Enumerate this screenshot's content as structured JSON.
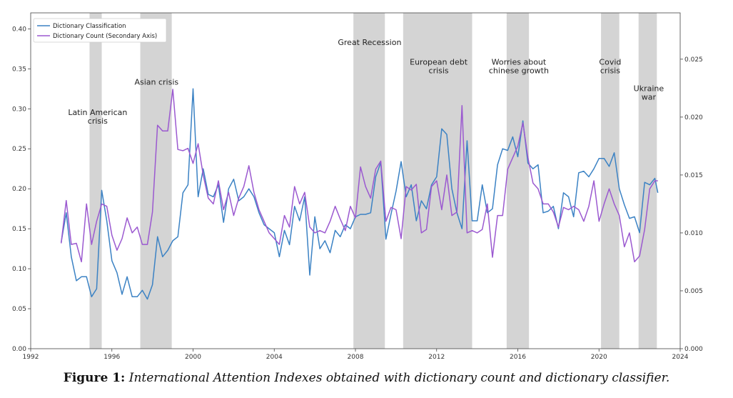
{
  "chart_data": {
    "type": "line",
    "xlim": [
      1992,
      2024
    ],
    "ylim_left": [
      0.0,
      0.42
    ],
    "ylim_right": [
      0.0,
      0.029
    ],
    "x_ticks": [
      "1992",
      "1996",
      "2000",
      "2004",
      "2008",
      "2012",
      "2016",
      "2020",
      "2024"
    ],
    "y_ticks_left": [
      "0.00",
      "0.05",
      "0.10",
      "0.15",
      "0.20",
      "0.25",
      "0.30",
      "0.35",
      "0.40"
    ],
    "y_ticks_right": [
      "0.000",
      "0.005",
      "0.010",
      "0.015",
      "0.020",
      "0.025"
    ],
    "legend_position": "top-left",
    "grid": false,
    "colors": {
      "classification": "#3b82c4",
      "count": "#9b59d0",
      "shade": "#d4d4d4"
    },
    "shaded_periods": [
      {
        "start": 1994.9,
        "end": 1995.5
      },
      {
        "start": 1997.4,
        "end": 1998.95
      },
      {
        "start": 2007.9,
        "end": 2009.45
      },
      {
        "start": 2010.35,
        "end": 2013.75
      },
      {
        "start": 2015.45,
        "end": 2016.55
      },
      {
        "start": 2020.1,
        "end": 2021.0
      },
      {
        "start": 2021.95,
        "end": 2022.85
      }
    ],
    "annotations": [
      {
        "lines": [
          "Latin American",
          "crisis"
        ],
        "x": 1995.3,
        "y": 0.292
      },
      {
        "lines": [
          "Asian crisis"
        ],
        "x": 1998.2,
        "y": 0.33
      },
      {
        "lines": [
          "Great Recession"
        ],
        "x": 2008.7,
        "y": 0.38
      },
      {
        "lines": [
          "European debt",
          "crisis"
        ],
        "x": 2012.1,
        "y": 0.355
      },
      {
        "lines": [
          "Worries about",
          "chinese growth"
        ],
        "x": 2016.05,
        "y": 0.355
      },
      {
        "lines": [
          "Covid",
          "crisis"
        ],
        "x": 2020.55,
        "y": 0.355
      },
      {
        "lines": [
          "Ukraine",
          "war"
        ],
        "x": 2022.45,
        "y": 0.322
      }
    ],
    "series": [
      {
        "name": "Dictionary Classification",
        "axis": "left",
        "x": [
          1993.5,
          1993.75,
          1994.0,
          1994.25,
          1994.5,
          1994.75,
          1995.0,
          1995.25,
          1995.5,
          1995.75,
          1996.0,
          1996.25,
          1996.5,
          1996.75,
          1997.0,
          1997.25,
          1997.5,
          1997.75,
          1998.0,
          1998.25,
          1998.5,
          1998.75,
          1999.0,
          1999.25,
          1999.5,
          1999.75,
          2000.0,
          2000.25,
          2000.5,
          2000.75,
          2001.0,
          2001.25,
          2001.5,
          2001.75,
          2002.0,
          2002.25,
          2002.5,
          2002.75,
          2003.0,
          2003.25,
          2003.5,
          2003.75,
          2004.0,
          2004.25,
          2004.5,
          2004.75,
          2005.0,
          2005.25,
          2005.5,
          2005.75,
          2006.0,
          2006.25,
          2006.5,
          2006.75,
          2007.0,
          2007.25,
          2007.5,
          2007.75,
          2008.0,
          2008.25,
          2008.5,
          2008.75,
          2009.0,
          2009.25,
          2009.5,
          2009.75,
          2010.0,
          2010.25,
          2010.5,
          2010.75,
          2011.0,
          2011.25,
          2011.5,
          2011.75,
          2012.0,
          2012.25,
          2012.5,
          2012.75,
          2013.0,
          2013.25,
          2013.5,
          2013.75,
          2014.0,
          2014.25,
          2014.5,
          2014.75,
          2015.0,
          2015.25,
          2015.5,
          2015.75,
          2016.0,
          2016.25,
          2016.5,
          2016.75,
          2017.0,
          2017.25,
          2017.5,
          2017.75,
          2018.0,
          2018.25,
          2018.5,
          2018.75,
          2019.0,
          2019.25,
          2019.5,
          2019.75,
          2020.0,
          2020.25,
          2020.5,
          2020.75,
          2021.0,
          2021.25,
          2021.5,
          2021.75,
          2022.0,
          2022.25,
          2022.5,
          2022.75,
          2022.9
        ],
        "y": [
          0.133,
          0.17,
          0.115,
          0.085,
          0.09,
          0.09,
          0.065,
          0.075,
          0.198,
          0.16,
          0.11,
          0.095,
          0.068,
          0.09,
          0.065,
          0.065,
          0.073,
          0.062,
          0.08,
          0.14,
          0.115,
          0.123,
          0.135,
          0.14,
          0.195,
          0.205,
          0.325,
          0.19,
          0.225,
          0.193,
          0.19,
          0.205,
          0.158,
          0.2,
          0.212,
          0.185,
          0.19,
          0.2,
          0.19,
          0.17,
          0.155,
          0.15,
          0.145,
          0.115,
          0.148,
          0.13,
          0.178,
          0.16,
          0.19,
          0.092,
          0.165,
          0.125,
          0.135,
          0.12,
          0.148,
          0.14,
          0.155,
          0.15,
          0.165,
          0.168,
          0.168,
          0.17,
          0.215,
          0.233,
          0.137,
          0.168,
          0.197,
          0.234,
          0.19,
          0.205,
          0.16,
          0.185,
          0.175,
          0.205,
          0.215,
          0.275,
          0.268,
          0.2,
          0.17,
          0.15,
          0.26,
          0.16,
          0.16,
          0.205,
          0.17,
          0.175,
          0.23,
          0.25,
          0.248,
          0.265,
          0.24,
          0.285,
          0.232,
          0.225,
          0.23,
          0.17,
          0.172,
          0.178,
          0.15,
          0.195,
          0.19,
          0.165,
          0.22,
          0.222,
          0.215,
          0.225,
          0.238,
          0.238,
          0.228,
          0.245,
          0.2,
          0.18,
          0.163,
          0.165,
          0.145,
          0.208,
          0.205,
          0.213,
          0.195
        ]
      },
      {
        "name": "Dictionary Count (Secondary Axis)",
        "axis": "right",
        "x": [
          1993.5,
          1993.75,
          1994.0,
          1994.25,
          1994.5,
          1994.75,
          1995.0,
          1995.25,
          1995.5,
          1995.75,
          1996.0,
          1996.25,
          1996.5,
          1996.75,
          1997.0,
          1997.25,
          1997.5,
          1997.75,
          1998.0,
          1998.25,
          1998.5,
          1998.75,
          1999.0,
          1999.25,
          1999.5,
          1999.75,
          2000.0,
          2000.25,
          2000.5,
          2000.75,
          2001.0,
          2001.25,
          2001.5,
          2001.75,
          2002.0,
          2002.25,
          2002.5,
          2002.75,
          2003.0,
          2003.25,
          2003.5,
          2003.75,
          2004.0,
          2004.25,
          2004.5,
          2004.75,
          2005.0,
          2005.25,
          2005.5,
          2005.75,
          2006.0,
          2006.25,
          2006.5,
          2006.75,
          2007.0,
          2007.25,
          2007.5,
          2007.75,
          2008.0,
          2008.25,
          2008.5,
          2008.75,
          2009.0,
          2009.25,
          2009.5,
          2009.75,
          2010.0,
          2010.25,
          2010.5,
          2010.75,
          2011.0,
          2011.25,
          2011.5,
          2011.75,
          2012.0,
          2012.25,
          2012.5,
          2012.75,
          2013.0,
          2013.25,
          2013.5,
          2013.75,
          2014.0,
          2014.25,
          2014.5,
          2014.75,
          2015.0,
          2015.25,
          2015.5,
          2015.75,
          2016.0,
          2016.25,
          2016.5,
          2016.75,
          2017.0,
          2017.25,
          2017.5,
          2017.75,
          2018.0,
          2018.25,
          2018.5,
          2018.75,
          2019.0,
          2019.25,
          2019.5,
          2019.75,
          2020.0,
          2020.25,
          2020.5,
          2020.75,
          2021.0,
          2021.25,
          2021.5,
          2021.75,
          2022.0,
          2022.25,
          2022.5,
          2022.75,
          2022.9
        ],
        "y": [
          0.0091,
          0.0128,
          0.009,
          0.0091,
          0.0075,
          0.0125,
          0.009,
          0.011,
          0.0125,
          0.0123,
          0.0098,
          0.0085,
          0.0095,
          0.0113,
          0.01,
          0.0105,
          0.009,
          0.009,
          0.0118,
          0.0193,
          0.0188,
          0.0188,
          0.0224,
          0.0172,
          0.0171,
          0.0173,
          0.016,
          0.0177,
          0.015,
          0.013,
          0.0125,
          0.0145,
          0.012,
          0.0135,
          0.0115,
          0.013,
          0.014,
          0.0158,
          0.0135,
          0.012,
          0.011,
          0.01,
          0.0095,
          0.009,
          0.0115,
          0.0105,
          0.014,
          0.0125,
          0.0135,
          0.0105,
          0.01,
          0.0102,
          0.01,
          0.011,
          0.0123,
          0.0112,
          0.0102,
          0.0123,
          0.0113,
          0.0157,
          0.014,
          0.013,
          0.0155,
          0.0162,
          0.011,
          0.0122,
          0.012,
          0.0095,
          0.014,
          0.0137,
          0.0142,
          0.01,
          0.0103,
          0.014,
          0.0145,
          0.012,
          0.015,
          0.0115,
          0.0118,
          0.021,
          0.01,
          0.0102,
          0.01,
          0.0103,
          0.0125,
          0.0079,
          0.0115,
          0.0115,
          0.0155,
          0.0165,
          0.0175,
          0.0195,
          0.0165,
          0.0143,
          0.0138,
          0.0125,
          0.0125,
          0.0118,
          0.0105,
          0.0122,
          0.012,
          0.0123,
          0.012,
          0.011,
          0.0123,
          0.0145,
          0.011,
          0.0125,
          0.0138,
          0.0125,
          0.0115,
          0.0088,
          0.01,
          0.0075,
          0.008,
          0.0103,
          0.0138,
          0.0145,
          0.0145
        ]
      }
    ]
  },
  "caption": {
    "label": "Figure 1:",
    "text": "International Attention Indexes obtained with dictionary count and dictionary classifier."
  }
}
